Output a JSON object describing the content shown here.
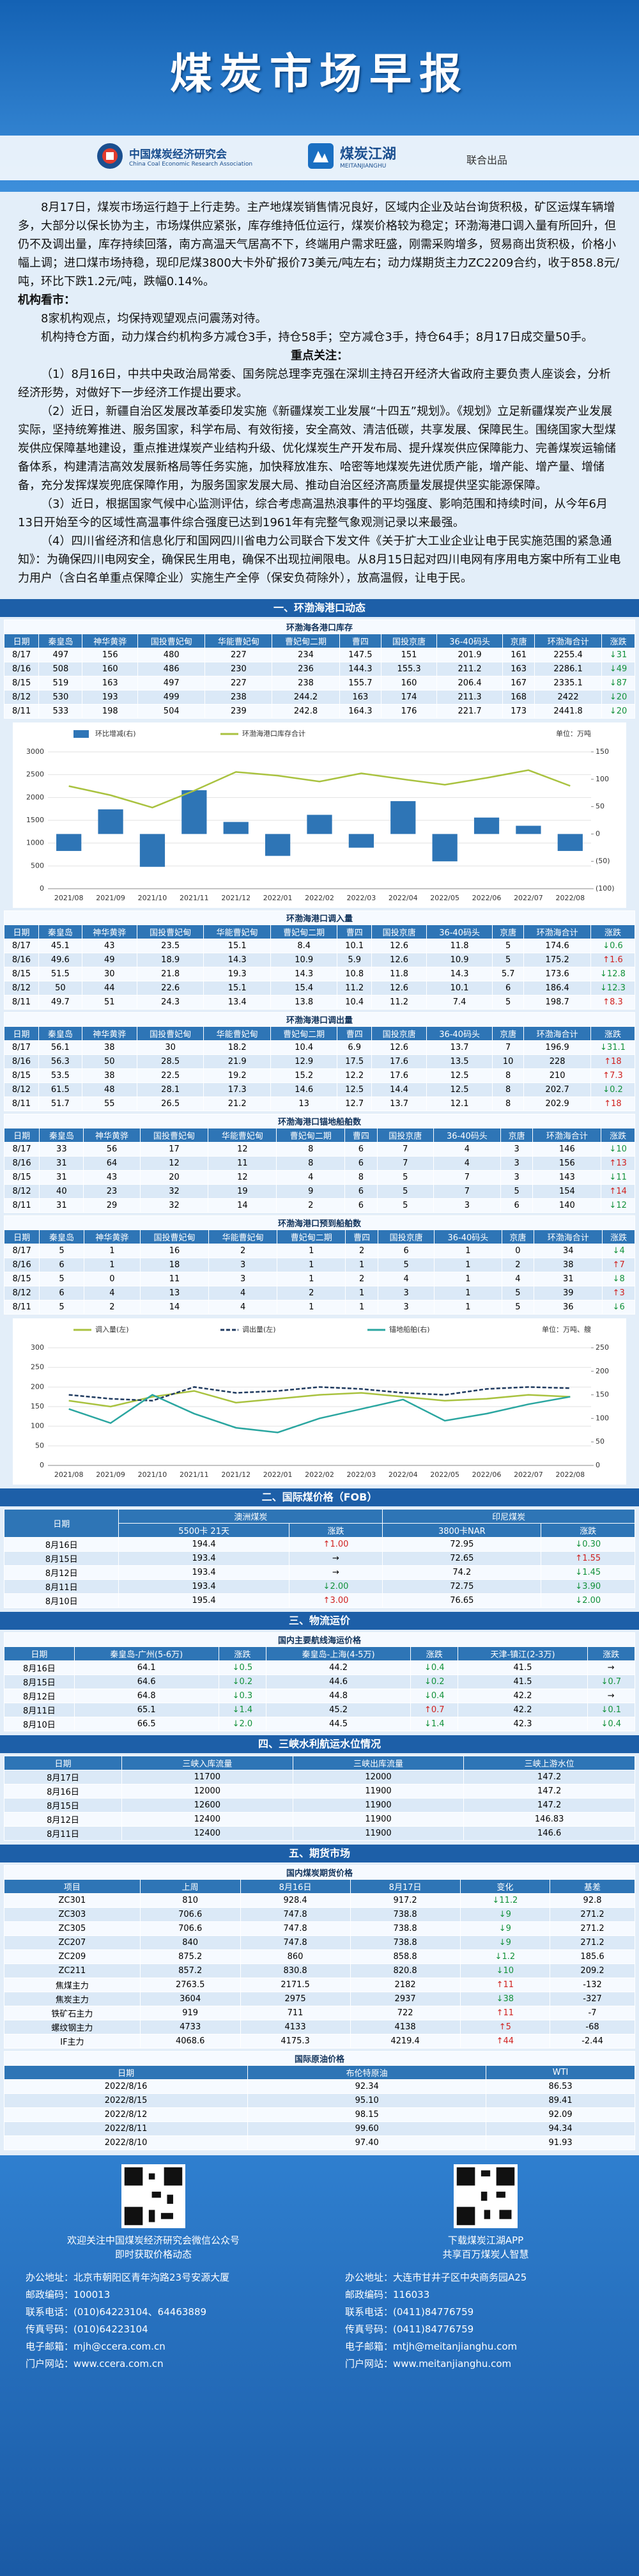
{
  "header": {
    "title": "煤炭市场早报",
    "org1_cn": "中国煤炭经济研究会",
    "org1_en": "China Coal Economic Research Association",
    "org2_cn": "煤炭江湖",
    "org2_en": "MEITANJIANGHU",
    "joint": "联合出品"
  },
  "summary": {
    "paragraph": "8月17日，煤炭市场运行趋于上行走势。主产地煤炭销售情况良好，区域内企业及站台询货积极，矿区运煤车辆增多，大部分以保长协为主，市场煤供应紧张，库存维持低位运行，煤炭价格较为稳定；环渤海港口调入量有所回升，但仍不及调出量，库存持续回落，南方高温天气居高不下，终端用户需求旺盛，刚需采购增多，贸易商出货积极，价格小幅上调；进口煤市场持稳，现印尼煤3800大卡外矿报价73美元/吨左右；动力煤期货主力ZC2209合约，收于858.8元/吨，环比下跌1.2元/吨，跌幅0.14%。",
    "institution_heading": "机构看市：",
    "institution_lines": [
      "8家机构观点，均保持观望观点问震荡对待。",
      "机构持仓方面，动力煤合约机构多方减仓3手，持仓58手；空方减仓3手，持仓64手；8月17日成交量50手。"
    ],
    "focus_heading": "重点关注：",
    "focus_items": [
      "（1）8月16日，中共中央政治局常委、国务院总理李克强在深圳主持召开经济大省政府主要负责人座谈会，分析经济形势，对做好下一步经济工作提出要求。",
      "（2）近日，新疆自治区发展改革委印发实施《新疆煤炭工业发展“十四五”规划》。《规划》立足新疆煤炭产业发展实际，坚持统筹推进、服务国家，科学布局、有效衔接，安全高效、清洁低碳，共享发展、保障民生。围绕国家大型煤炭供应保障基地建设，重点推进煤炭产业结构升级、优化煤炭生产开发布局、提升煤炭供应保障能力、完善煤炭运输储备体系，构建清洁高效发展新格局等任务实施，加快释放准东、哈密等地煤炭先进优质产能，增产能、增产量、增储备，充分发挥煤炭兜底保障作用，为服务国家发展大局、推动自治区经济高质量发展提供坚实能源保障。",
      "（3）近日，根据国家气候中心监测评估，综合考虑高温热浪事件的平均强度、影响范围和持续时间，从今年6月13日开始至今的区域性高温事件综合强度已达到1961年有完整气象观测记录以来最强。",
      "（4）四川省经济和信息化厅和国网四川省电力公司联合下发文件《关于扩大工业企业让电于民实施范围的紧急通知》：为确保四川电网安全，确保民生用电，确保不出现拉闸限电。从8月15日起对四川电网有序用电方案中所有工业电力用户（含白名单重点保障企业）实施生产全停（保安负荷除外），放高温假，让电于民。"
    ]
  },
  "sections": [
    {
      "heading": "一、环渤海港口动态",
      "tables": [
        {
          "title": "环渤海各港口库存",
          "columns": [
            "日期",
            "秦皇岛",
            "神华黄骅",
            "国投曹妃甸",
            "华能曹妃甸",
            "曹妃甸二期",
            "曹四",
            "国投京唐",
            "36-40码头",
            "京唐",
            "环渤海合计",
            "涨跌"
          ],
          "rows": [
            [
              "8/17",
              497,
              156,
              480,
              227,
              234,
              147.5,
              151,
              201.9,
              161,
              2255.4,
              "↓31"
            ],
            [
              "8/16",
              508,
              160,
              486,
              230,
              236,
              144.3,
              155.3,
              211.2,
              163,
              2286.1,
              "↓49"
            ],
            [
              "8/15",
              519,
              163,
              497,
              227,
              238,
              155.7,
              160,
              206.4,
              167,
              2335.1,
              "↓87"
            ],
            [
              "8/12",
              530,
              193,
              499,
              238,
              244.2,
              163,
              174,
              211.3,
              168,
              2422,
              "↓20"
            ],
            [
              "8/11",
              533,
              198,
              504,
              239,
              242.8,
              164.3,
              176,
              221.7,
              173,
              2441.8,
              "↓20"
            ]
          ]
        },
        {
          "title": "环渤海港口调入量",
          "columns": [
            "日期",
            "秦皇岛",
            "神华黄骅",
            "国投曹妃甸",
            "华能曹妃甸",
            "曹妃甸二期",
            "曹四",
            "国投京唐",
            "36-40码头",
            "京唐",
            "环渤海合计",
            "涨跌"
          ],
          "rows": [
            [
              "8/17",
              45.1,
              43,
              23.5,
              15.1,
              8.4,
              10.1,
              12.6,
              11.8,
              5,
              174.6,
              "↓0.6"
            ],
            [
              "8/16",
              49.6,
              49,
              18.9,
              14.3,
              10.9,
              5.9,
              12.6,
              10.9,
              5,
              175.2,
              "↑1.6"
            ],
            [
              "8/15",
              51.5,
              30,
              21.8,
              19.3,
              14.3,
              10.8,
              11.8,
              14.3,
              5.7,
              173.6,
              "↓12.8"
            ],
            [
              "8/12",
              50,
              44,
              22.6,
              15.1,
              15.4,
              11.2,
              12.6,
              10.1,
              6,
              186.4,
              "↓12.3"
            ],
            [
              "8/11",
              49.7,
              51,
              24.3,
              13.4,
              13.8,
              10.4,
              11.2,
              7.4,
              5,
              198.7,
              "↑8.3"
            ]
          ]
        },
        {
          "title": "环渤海港口调出量",
          "columns": [
            "日期",
            "秦皇岛",
            "神华黄骅",
            "国投曹妃甸",
            "华能曹妃甸",
            "曹妃甸二期",
            "曹四",
            "国投京唐",
            "36-40码头",
            "京唐",
            "环渤海合计",
            "涨跌"
          ],
          "rows": [
            [
              "8/17",
              56.1,
              38,
              30,
              18.2,
              10.4,
              6.9,
              12.6,
              13.7,
              7,
              196.9,
              "↓31.1"
            ],
            [
              "8/16",
              56.3,
              50,
              28.5,
              21.9,
              12.9,
              17.5,
              17.6,
              13.5,
              10,
              228,
              "↑18"
            ],
            [
              "8/15",
              53.5,
              38,
              22.5,
              19.2,
              15.2,
              12.2,
              17.6,
              12.5,
              8,
              210,
              "↑7.3"
            ],
            [
              "8/12",
              61.5,
              48,
              28.1,
              17.3,
              14.6,
              12.5,
              14.4,
              12.5,
              8,
              202.7,
              "↓0.2"
            ],
            [
              "8/11",
              51.7,
              55,
              26.5,
              21.2,
              13,
              12.7,
              13.7,
              12.1,
              8,
              202.9,
              "↑18"
            ]
          ]
        },
        {
          "title": "环渤海港口锚地船舶数",
          "columns": [
            "日期",
            "秦皇岛",
            "神华黄骅",
            "国投曹妃甸",
            "华能曹妃甸",
            "曹妃甸二期",
            "曹四",
            "国投京唐",
            "36-40码头",
            "京唐",
            "环渤海合计",
            "涨跌"
          ],
          "rows": [
            [
              "8/17",
              33,
              56,
              17,
              12,
              8,
              6,
              7,
              4,
              3,
              146,
              "↓10"
            ],
            [
              "8/16",
              31,
              64,
              12,
              11,
              8,
              6,
              7,
              4,
              3,
              156,
              "↑13"
            ],
            [
              "8/15",
              31,
              43,
              20,
              12,
              4,
              8,
              5,
              7,
              3,
              143,
              "↓11"
            ],
            [
              "8/12",
              40,
              23,
              32,
              19,
              9,
              6,
              5,
              7,
              5,
              154,
              "↑14"
            ],
            [
              "8/11",
              31,
              29,
              32,
              14,
              2,
              6,
              5,
              3,
              6,
              140,
              "↓12"
            ]
          ]
        },
        {
          "title": "环渤海港口预到船舶数",
          "columns": [
            "日期",
            "秦皇岛",
            "神华黄骅",
            "国投曹妃甸",
            "华能曹妃甸",
            "曹妃甸二期",
            "曹四",
            "国投京唐",
            "36-40码头",
            "京唐",
            "环渤海合计",
            "涨跌"
          ],
          "rows": [
            [
              "8/17",
              5,
              1,
              16,
              2,
              1,
              2,
              6,
              1,
              0,
              34,
              "↓4"
            ],
            [
              "8/16",
              6,
              1,
              18,
              3,
              1,
              1,
              5,
              1,
              2,
              38,
              "↑7"
            ],
            [
              "8/15",
              5,
              0,
              11,
              3,
              1,
              2,
              4,
              1,
              4,
              31,
              "↓8"
            ],
            [
              "8/12",
              6,
              4,
              13,
              4,
              2,
              1,
              3,
              1,
              5,
              39,
              "↑3"
            ],
            [
              "8/11",
              5,
              2,
              14,
              4,
              1,
              1,
              3,
              1,
              5,
              36,
              "↓6"
            ]
          ]
        }
      ]
    },
    {
      "heading": "二、国际煤价格（FOB）",
      "tables": [
        {
          "group_header": [
            "澳洲煤炭",
            "印尼煤炭"
          ],
          "columns": [
            "日期",
            "5500卡 21天",
            "涨跌",
            "3800卡NAR",
            "涨跌"
          ],
          "rows": [
            [
              "8月16日",
              194.4,
              "↑1.00",
              72.95,
              "↓0.30"
            ],
            [
              "8月15日",
              193.4,
              "→",
              72.65,
              "↑1.55"
            ],
            [
              "8月12日",
              193.4,
              "→",
              74.2,
              "↓1.45"
            ],
            [
              "8月11日",
              193.4,
              "↓2.00",
              72.75,
              "↓3.90"
            ],
            [
              "8月10日",
              195.4,
              "↑3.00",
              76.65,
              "↓2.00"
            ]
          ]
        }
      ]
    },
    {
      "heading": "三、物流运价",
      "tables": [
        {
          "title": "国内主要航线海运价格",
          "columns": [
            "日期",
            "秦皇岛-广州(5-6万)",
            "涨跌",
            "秦皇岛-上海(4-5万)",
            "涨跌",
            "天津-镇江(2-3万)",
            "涨跌"
          ],
          "rows": [
            [
              "8月16日",
              64.1,
              "↓0.5",
              44.2,
              "↓0.4",
              41.5,
              "→"
            ],
            [
              "8月15日",
              64.6,
              "↓0.2",
              44.6,
              "↓0.2",
              41.5,
              "↓0.7"
            ],
            [
              "8月12日",
              64.8,
              "↓0.3",
              44.8,
              "↓0.4",
              42.2,
              "→"
            ],
            [
              "8月11日",
              65.1,
              "↓1.4",
              45.2,
              "↑0.7",
              42.2,
              "↓0.1"
            ],
            [
              "8月10日",
              66.5,
              "↓2.0",
              44.5,
              "↓1.4",
              42.3,
              "↓0.4"
            ]
          ]
        }
      ]
    },
    {
      "heading": "四、三峡水利航运水位情况",
      "tables": [
        {
          "columns": [
            "日期",
            "三峡入库流量",
            "三峡出库流量",
            "三峡上游水位"
          ],
          "rows": [
            [
              "8月17日",
              11700,
              12000,
              147.2
            ],
            [
              "8月16日",
              12000,
              11900,
              147.2
            ],
            [
              "8月15日",
              12600,
              11900,
              147.2
            ],
            [
              "8月12日",
              12400,
              11900,
              146.83
            ],
            [
              "8月11日",
              12400,
              11900,
              146.6
            ]
          ]
        }
      ]
    },
    {
      "heading": "五、期货市场",
      "tables": [
        {
          "title": "国内煤炭期货价格",
          "columns": [
            "项目",
            "上周",
            "8月16日",
            "8月17日",
            "变化",
            "基差"
          ],
          "rows": [
            [
              "ZC301",
              810,
              928.4,
              917.2,
              "↓11.2",
              92.8
            ],
            [
              "ZC303",
              706.6,
              747.8,
              738.8,
              "↓9",
              271.2
            ],
            [
              "ZC305",
              706.6,
              747.8,
              738.8,
              "↓9",
              271.2
            ],
            [
              "ZC207",
              840,
              747.8,
              738.8,
              "↓9",
              271.2
            ],
            [
              "ZC209",
              875.2,
              860,
              858.8,
              "↓1.2",
              185.6
            ],
            [
              "ZC211",
              857.2,
              830.8,
              820.8,
              "↓10",
              209.2
            ],
            [
              "焦煤主力",
              2763.5,
              2171.5,
              2182,
              "↑11",
              -132
            ],
            [
              "焦炭主力",
              3604,
              2975,
              2937,
              "↓38",
              -327
            ],
            [
              "铁矿石主力",
              919,
              711,
              722,
              "↑11",
              -7
            ],
            [
              "螺纹钢主力",
              4733,
              4133,
              4138,
              "↑5",
              -68
            ],
            [
              "IF主力",
              4068.6,
              4175.3,
              4219.4,
              "↑44",
              -2.44
            ]
          ]
        },
        {
          "title": "国际原油价格",
          "columns": [
            "日期",
            "布伦特原油",
            "WTI"
          ],
          "rows": [
            [
              "2022/8/16",
              92.34,
              86.53
            ],
            [
              "2022/8/15",
              "95.10",
              89.41
            ],
            [
              "2022/8/12",
              98.15,
              92.09
            ],
            [
              "2022/8/11",
              "99.60",
              94.34
            ],
            [
              "2022/8/10",
              "97.40",
              91.93
            ]
          ]
        }
      ]
    }
  ],
  "chart_data": [
    {
      "type": "combo",
      "unit": "单位：万吨",
      "legend": "top",
      "grid": true,
      "categories": [
        "2021/08",
        "2021/09",
        "2021/10",
        "2021/11",
        "2021/12",
        "2022/01",
        "2022/02",
        "2022/03",
        "2022/04",
        "2022/05",
        "2022/06",
        "2022/07",
        "2022/08"
      ],
      "series": [
        {
          "name": "环比增减(右)",
          "type": "bar",
          "axis": "y2",
          "color": "#2e75b6",
          "values": [
            -31,
            45,
            -60,
            80,
            22,
            -40,
            35,
            -25,
            60,
            -50,
            30,
            15,
            -31
          ]
        },
        {
          "name": "环渤海港口库存合计",
          "type": "line",
          "color": "#a9c23f",
          "values": [
            2250,
            2050,
            1780,
            2150,
            2560,
            2480,
            2350,
            2530,
            2400,
            2280,
            2430,
            2600,
            2255
          ]
        }
      ],
      "ylim": [
        0,
        3000
      ],
      "yticks": [
        0,
        500,
        1000,
        1500,
        2000,
        2500,
        3000
      ],
      "y2lim": [
        -100,
        150
      ],
      "y2ticks": [
        {
          "value": -100,
          "label": "(100)"
        },
        {
          "value": -50,
          "label": "(50)"
        },
        0,
        50,
        100,
        150
      ]
    },
    {
      "type": "line",
      "unit": "单位：万吨、艘",
      "legend": "top",
      "grid": true,
      "categories": [
        "2021/08",
        "2021/09",
        "2021/10",
        "2021/11",
        "2021/12",
        "2022/01",
        "2022/02",
        "2022/03",
        "2022/04",
        "2022/05",
        "2022/06",
        "2022/07",
        "2022/08"
      ],
      "series": [
        {
          "name": "调入量(左)",
          "color": "#a9c23f",
          "values": [
            165,
            150,
            175,
            190,
            160,
            170,
            180,
            185,
            175,
            165,
            170,
            180,
            175
          ]
        },
        {
          "name": "调出量(左)",
          "color": "#1f3a5f",
          "dashed": true,
          "values": [
            180,
            170,
            165,
            200,
            185,
            190,
            200,
            195,
            185,
            180,
            195,
            200,
            197
          ]
        },
        {
          "name": "锚地船舶(右)",
          "color": "#2aa6a0",
          "axis": "y2",
          "values": [
            120,
            90,
            150,
            110,
            80,
            70,
            100,
            120,
            140,
            95,
            110,
            130,
            146
          ]
        }
      ],
      "ylim": [
        0,
        300
      ],
      "yticks": [
        0,
        50,
        100,
        150,
        200,
        250,
        300
      ],
      "y2lim": [
        0,
        250
      ],
      "y2ticks": [
        0,
        50,
        100,
        150,
        200,
        250
      ]
    }
  ],
  "footer": {
    "left": {
      "caption": [
        "欢迎关注中国煤炭经济研究会微信公众号",
        "即时获取价格动态"
      ],
      "lines": [
        "办公地址：北京市朝阳区青年沟路23号安源大厦",
        "邮政编码：100013",
        "联系电话：(010)64223104、64463889",
        "传真号码：(010)64223104",
        "电子邮箱：mjh@ccera.com.cn",
        "门户网站：www.ccera.com.cn"
      ]
    },
    "right": {
      "caption": [
        "下载煤炭江湖APP",
        "共享百万煤炭人智慧"
      ],
      "lines": [
        "办公地址：大连市甘井子区中央商务园A25",
        "邮政编码：116033",
        "联系电话：(0411)84776759",
        "传真号码：(0411)84776759",
        "电子邮箱：mtjh@meitanjianghu.com",
        "门户网站：www.meitanjianghu.com"
      ]
    }
  }
}
